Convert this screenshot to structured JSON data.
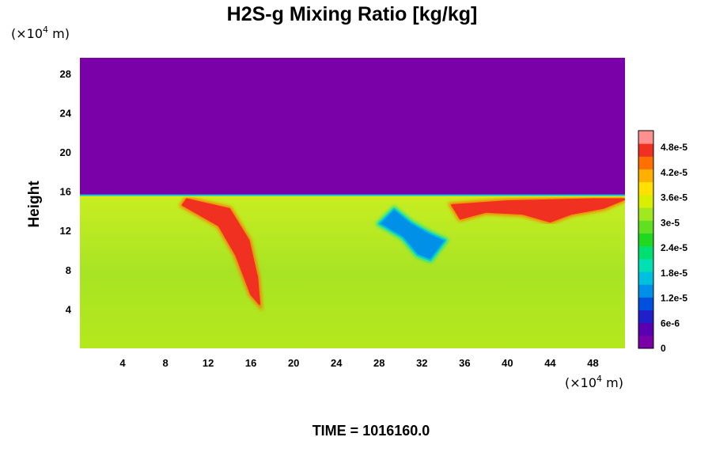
{
  "chart_data": {
    "type": "heatmap",
    "title": "H2S-g Mixing Ratio [kg/kg]",
    "ylabel": "Height",
    "xlabel": "",
    "x_unit": {
      "prefix": "(×10",
      "exp": "4",
      "suffix": " m)"
    },
    "y_unit": {
      "prefix": "(×10",
      "exp": "4",
      "suffix": " m)"
    },
    "xlim": [
      0,
      51
    ],
    "ylim": [
      0,
      29.6
    ],
    "x_ticks": [
      4,
      8,
      12,
      16,
      20,
      24,
      28,
      32,
      36,
      40,
      44,
      48
    ],
    "x_tick_labels": [
      "4",
      "8",
      "12",
      "16",
      "20",
      "24",
      "28",
      "32",
      "36",
      "40",
      "44",
      "48"
    ],
    "y_ticks": [
      4,
      8,
      12,
      16,
      20,
      24,
      28
    ],
    "y_tick_labels": [
      "4",
      "8",
      "12",
      "16",
      "20",
      "24",
      "28"
    ],
    "colorbar": {
      "min": 0,
      "max": 5.2e-05,
      "tick_values": [
        0,
        6e-06,
        1.2e-05,
        1.8e-05,
        2.4e-05,
        3e-05,
        3.6e-05,
        4.2e-05,
        4.8e-05
      ],
      "tick_labels": [
        "0",
        "6e-6",
        "1.2e-5",
        "1.8e-5",
        "2.4e-5",
        "3e-5",
        "3.6e-5",
        "4.2e-5",
        "4.8e-5"
      ],
      "colors": [
        "#7a00a8",
        "#5a00b0",
        "#2020c8",
        "#0050e0",
        "#0090e8",
        "#00c0e0",
        "#00e0b0",
        "#00e070",
        "#20d820",
        "#60e020",
        "#a0e820",
        "#d8f000",
        "#ffe000",
        "#ffb000",
        "#ff7000",
        "#f03020",
        "#ff9090"
      ]
    },
    "regions": [
      {
        "name": "upper-layer",
        "x": [
          0,
          51
        ],
        "y": [
          15.6,
          29.6
        ],
        "value": 0
      },
      {
        "name": "lower-layer",
        "x": [
          0,
          51
        ],
        "y": [
          0,
          15.6
        ],
        "value": 3.2e-05
      },
      {
        "name": "left-high-plume",
        "points": [
          [
            10,
            15.2
          ],
          [
            14,
            14.2
          ],
          [
            15.8,
            11
          ],
          [
            16.6,
            7.2
          ],
          [
            16.8,
            4.5
          ],
          [
            16,
            5.5
          ],
          [
            14.6,
            9.5
          ],
          [
            13,
            12.5
          ],
          [
            9.6,
            14.6
          ]
        ],
        "value": 5e-05
      },
      {
        "name": "center-low-tongue",
        "points": [
          [
            28,
            12.7
          ],
          [
            30.2,
            11.3
          ],
          [
            31.6,
            9.5
          ],
          [
            32.8,
            9
          ],
          [
            34.2,
            11
          ],
          [
            32.6,
            11.8
          ],
          [
            31,
            12.8
          ],
          [
            29.4,
            14.2
          ]
        ],
        "value": 1.2e-05
      },
      {
        "name": "right-high-lens",
        "points": [
          [
            34.8,
            14.6
          ],
          [
            40,
            15
          ],
          [
            44,
            15.1
          ],
          [
            48,
            15.2
          ],
          [
            51,
            15.2
          ],
          [
            49,
            14.3
          ],
          [
            46,
            13.7
          ],
          [
            44,
            12.9
          ],
          [
            41.4,
            13.7
          ],
          [
            38,
            13.9
          ],
          [
            35.6,
            13.2
          ]
        ],
        "value": 5e-05
      }
    ]
  },
  "footer": {
    "time_label": "TIME = 1016160.0"
  }
}
